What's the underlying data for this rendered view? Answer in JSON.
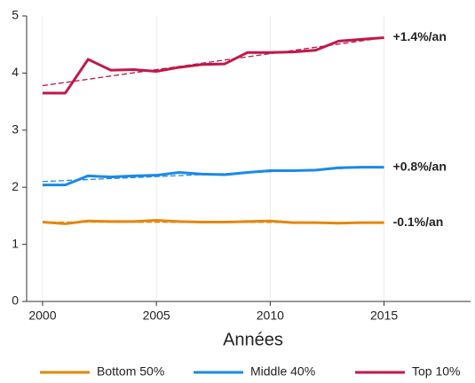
{
  "chart_data": {
    "type": "line",
    "x": [
      2000,
      2001,
      2002,
      2003,
      2004,
      2005,
      2006,
      2007,
      2008,
      2009,
      2010,
      2011,
      2012,
      2013,
      2014,
      2015
    ],
    "series": [
      {
        "name": "Bottom 50%",
        "color": "#e5870e",
        "label": "-0.1%/an",
        "values": [
          1.39,
          1.36,
          1.41,
          1.4,
          1.4,
          1.42,
          1.4,
          1.39,
          1.39,
          1.4,
          1.41,
          1.38,
          1.38,
          1.37,
          1.38,
          1.38
        ],
        "trend": [
          1.39,
          1.38
        ]
      },
      {
        "name": "Middle 40%",
        "color": "#1a8ae8",
        "label": "+0.8%/an",
        "values": [
          2.04,
          2.04,
          2.2,
          2.18,
          2.2,
          2.21,
          2.26,
          2.23,
          2.22,
          2.26,
          2.29,
          2.29,
          2.3,
          2.34,
          2.35,
          2.35
        ],
        "trend": [
          2.1,
          2.36
        ]
      },
      {
        "name": "Top 10%",
        "color": "#c0184a",
        "label": "+1.4%/an",
        "values": [
          3.65,
          3.65,
          4.24,
          4.05,
          4.06,
          4.03,
          4.1,
          4.15,
          4.16,
          4.36,
          4.36,
          4.37,
          4.4,
          4.56,
          4.59,
          4.62
        ],
        "trend": [
          3.78,
          4.62
        ]
      }
    ],
    "x_label": "Années",
    "xlim": [
      1999.3,
      2018.8
    ],
    "xticks": [
      2000,
      2005,
      2010,
      2015
    ],
    "ylim": [
      0,
      5
    ],
    "yticks": [
      0,
      1,
      2,
      3,
      4,
      5
    ],
    "grid": "x"
  }
}
